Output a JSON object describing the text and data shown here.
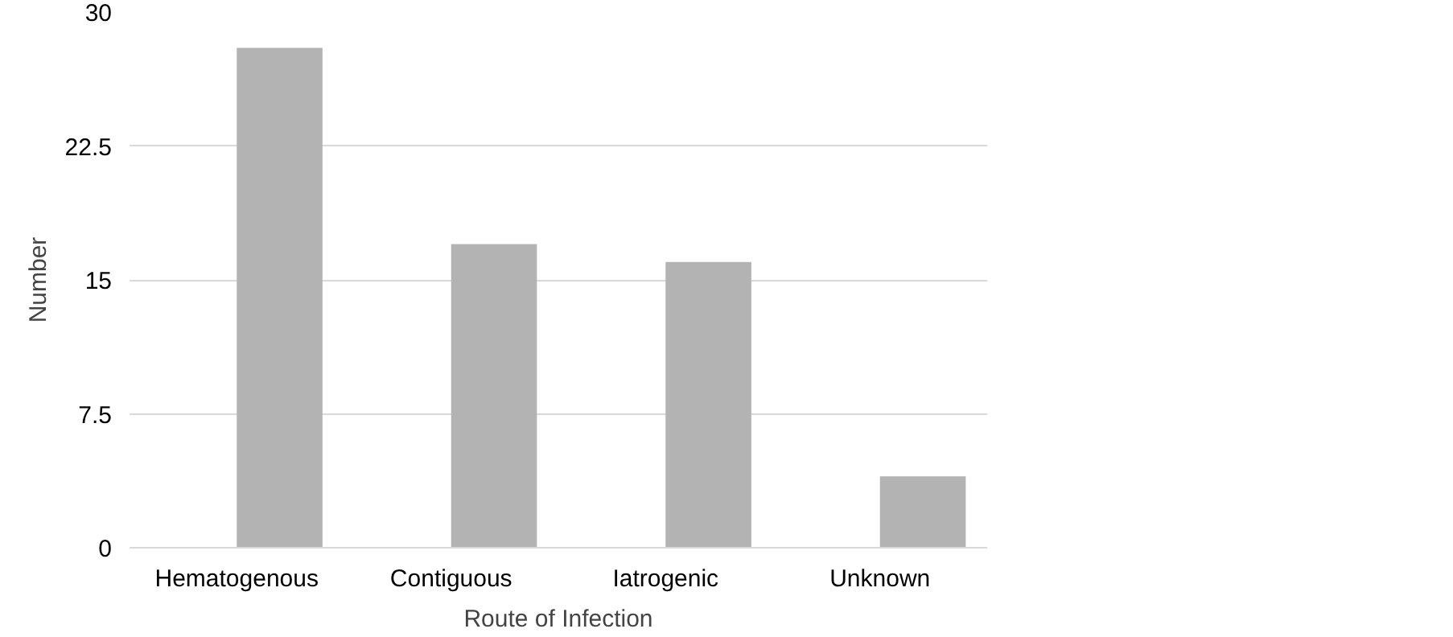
{
  "chart_data": {
    "type": "bar",
    "xlabel": "Route of Infection",
    "ylabel": "Number",
    "categories": [
      "Hematogenous",
      "Contiguous",
      "Iatrogenic",
      "Unknown"
    ],
    "values": [
      28,
      17,
      16,
      4
    ],
    "color": "#b3b3b3",
    "ylim": [
      0,
      30
    ],
    "yticks": [
      0,
      {
        "value": 7.5,
        "label": "7.5"
      },
      15,
      {
        "value": 22.5,
        "label": "22.5"
      },
      30
    ],
    "grid": "y"
  }
}
